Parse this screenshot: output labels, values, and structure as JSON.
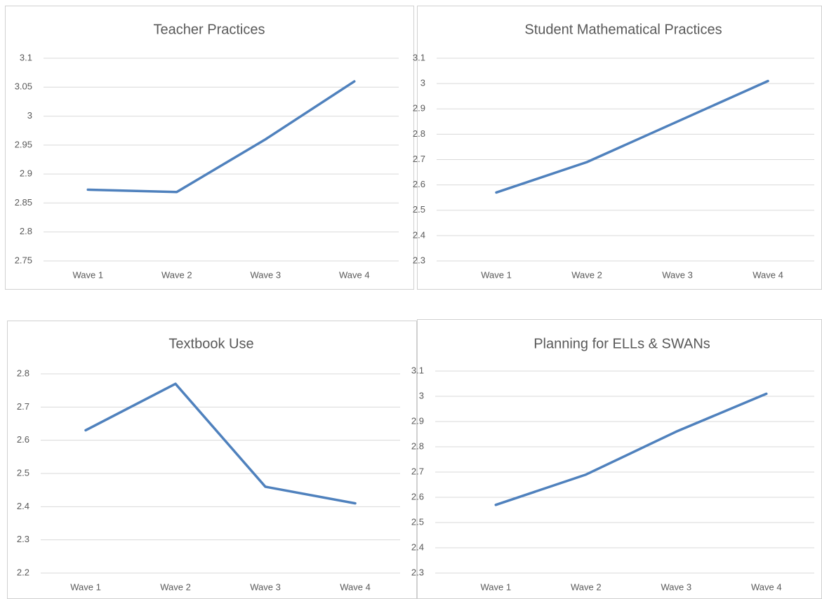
{
  "chart_data": {
    "charts": [
      {
        "type": "line",
        "title": "Teacher Practices",
        "categories": [
          "Wave 1",
          "Wave 2",
          "Wave 3",
          "Wave 4"
        ],
        "values": [
          2.873,
          2.869,
          2.96,
          3.06
        ],
        "color": "#4f81bd",
        "ylim": [
          2.75,
          3.1
        ],
        "yticks": [
          2.75,
          2.8,
          2.85,
          2.9,
          2.95,
          3,
          3.05,
          3.1
        ],
        "grid": true
      },
      {
        "type": "line",
        "title": "Student Mathematical Practices",
        "categories": [
          "Wave 1",
          "Wave 2",
          "Wave 3",
          "Wave 4"
        ],
        "values": [
          2.57,
          2.69,
          2.85,
          3.01
        ],
        "color": "#4f81bd",
        "ylim": [
          2.3,
          3.1
        ],
        "yticks": [
          2.3,
          2.4,
          2.5,
          2.6,
          2.7,
          2.8,
          2.9,
          3,
          3.1
        ],
        "grid": true
      },
      {
        "type": "line",
        "title": "Textbook Use",
        "categories": [
          "Wave 1",
          "Wave 2",
          "Wave 3",
          "Wave 4"
        ],
        "values": [
          2.63,
          2.77,
          2.46,
          2.41
        ],
        "color": "#4f81bd",
        "ylim": [
          2.2,
          2.8
        ],
        "yticks": [
          2.2,
          2.3,
          2.4,
          2.5,
          2.6,
          2.7,
          2.8
        ],
        "grid": true
      },
      {
        "type": "line",
        "title": "Planning for ELLs & SWANs",
        "categories": [
          "Wave 1",
          "Wave 2",
          "Wave 3",
          "Wave 4"
        ],
        "values": [
          2.57,
          2.69,
          2.86,
          3.01
        ],
        "color": "#4f81bd",
        "ylim": [
          2.3,
          3.1
        ],
        "yticks": [
          2.3,
          2.4,
          2.5,
          2.6,
          2.7,
          2.8,
          2.9,
          3,
          3.1
        ],
        "grid": true
      }
    ]
  }
}
